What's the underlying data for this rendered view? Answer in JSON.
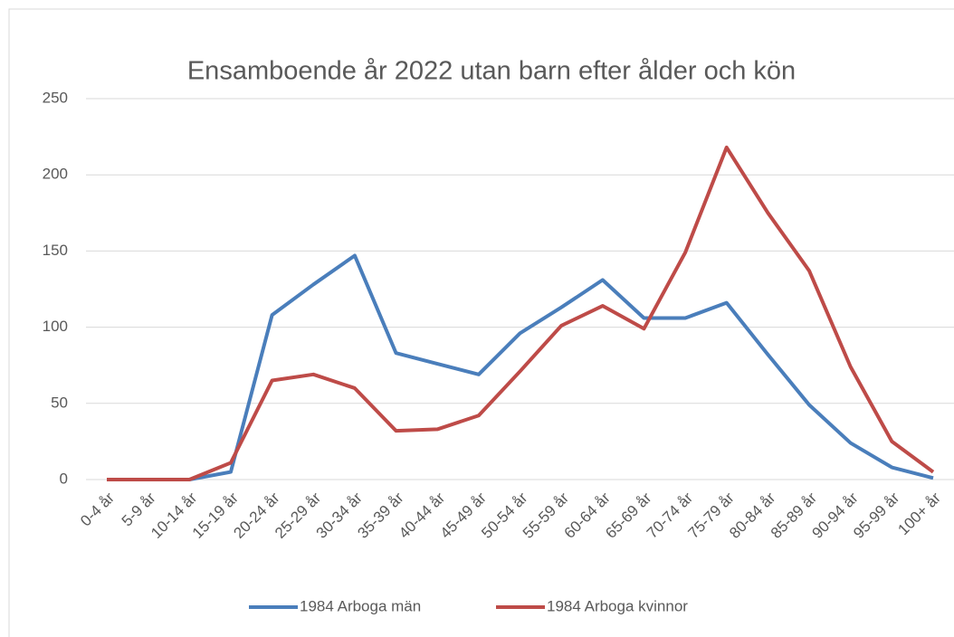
{
  "chart_data": {
    "type": "line",
    "title": "Ensamboende år 2022 utan barn efter ålder och kön",
    "categories": [
      "0-4 år",
      "5-9 år",
      "10-14 år",
      "15-19 år",
      "20-24 år",
      "25-29 år",
      "30-34 år",
      "35-39 år",
      "40-44 år",
      "45-49 år",
      "50-54 år",
      "55-59 år",
      "60-64 år",
      "65-69 år",
      "70-74 år",
      "75-79 år",
      "80-84 år",
      "85-89 år",
      "90-94 år",
      "95-99 år",
      "100+ år"
    ],
    "series": [
      {
        "name": "1984 Arboga män",
        "color": "#4a7ebb",
        "values": [
          0,
          0,
          0,
          5,
          108,
          128,
          147,
          83,
          76,
          69,
          96,
          113,
          131,
          106,
          106,
          116,
          82,
          49,
          24,
          8,
          1
        ]
      },
      {
        "name": "1984 Arboga kvinnor",
        "color": "#be4b48",
        "values": [
          0,
          0,
          0,
          11,
          65,
          69,
          60,
          32,
          33,
          42,
          71,
          101,
          114,
          99,
          149,
          218,
          175,
          137,
          74,
          25,
          5
        ]
      }
    ],
    "ylim": [
      0,
      250
    ],
    "yticks": [
      0,
      50,
      100,
      150,
      200,
      250
    ],
    "grid": true,
    "legend": "bottom"
  }
}
